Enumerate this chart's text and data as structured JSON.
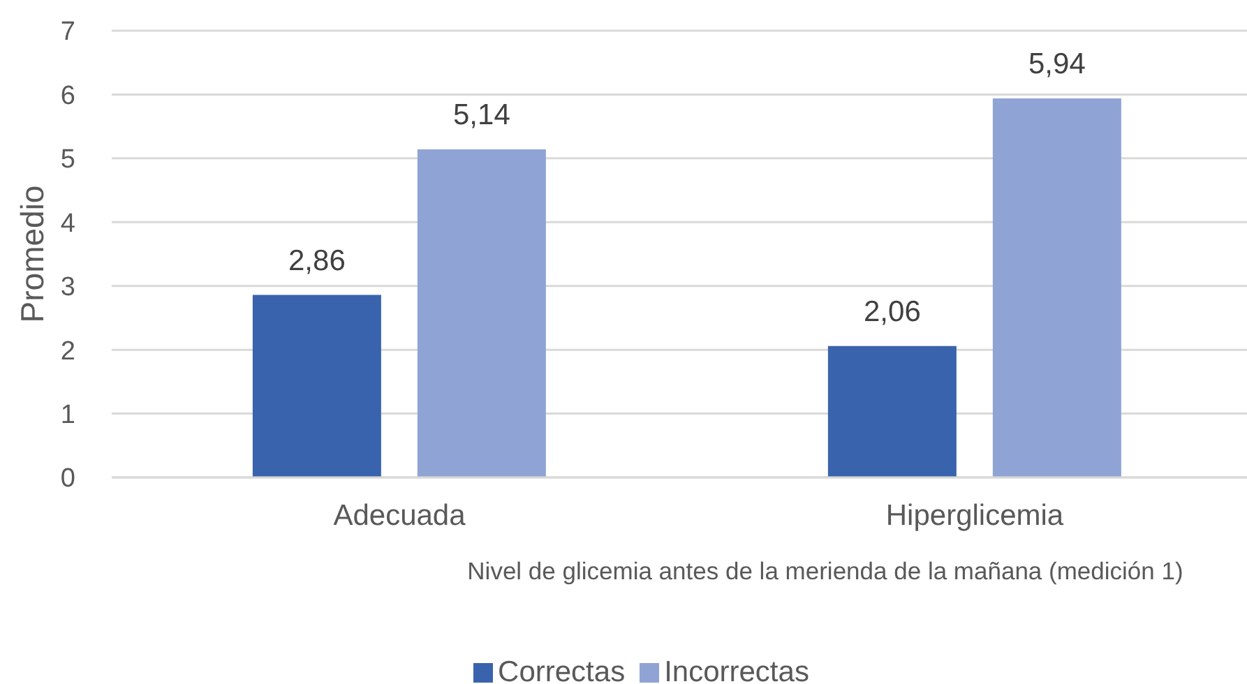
{
  "chart_data": {
    "type": "bar",
    "xlabel": "Nivel de glicemia antes de la merienda de la mañana (medición 1)",
    "ylabel": "Promedio",
    "categories": [
      "Adecuada",
      "Hiperglicemia"
    ],
    "series": [
      {
        "name": "Correctas",
        "color": "#3a63ad",
        "values": [
          2.86,
          2.06
        ],
        "value_labels": [
          "2,86",
          "2,06"
        ]
      },
      {
        "name": "Incorrectas",
        "color": "#8fa4d4",
        "values": [
          5.14,
          5.94
        ],
        "value_labels": [
          "5,14",
          "5,94"
        ]
      }
    ],
    "ylim": [
      0,
      7
    ],
    "yticks": [
      0,
      1,
      2,
      3,
      4,
      5,
      6,
      7
    ],
    "grid": "y",
    "legend": "bottom"
  }
}
